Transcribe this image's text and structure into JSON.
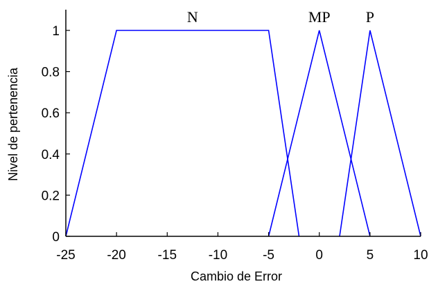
{
  "chart_data": {
    "type": "line",
    "xlabel": "Cambio de Error",
    "ylabel": "Nivel de pertenencia",
    "xlim": [
      -25,
      10
    ],
    "ylim": [
      0,
      1
    ],
    "x_ticks": [
      "-25",
      "-20",
      "-15",
      "-10",
      "-5",
      "0",
      "5",
      "10"
    ],
    "y_ticks": [
      "0",
      "0.2",
      "0.4",
      "0.6",
      "0.8",
      "1"
    ],
    "grid": false,
    "line_color": "#0000ff",
    "series": [
      {
        "name": "N",
        "x": [
          -25,
          -20,
          -5,
          -2
        ],
        "y": [
          0,
          1,
          1,
          0
        ]
      },
      {
        "name": "MP",
        "x": [
          -5,
          0,
          5
        ],
        "y": [
          0,
          1,
          0
        ]
      },
      {
        "name": "P",
        "x": [
          2,
          5,
          10
        ],
        "y": [
          0,
          1,
          0
        ]
      }
    ]
  }
}
